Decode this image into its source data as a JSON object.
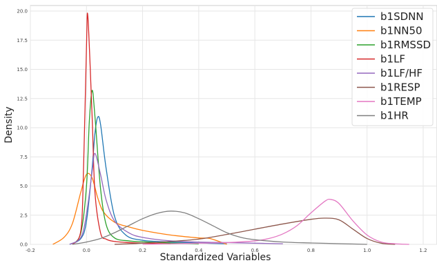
{
  "chart_data": {
    "type": "line",
    "subtype": "kde",
    "title": "",
    "xlabel": "Standardized Variables",
    "ylabel": "Density",
    "xlim": [
      -0.2,
      1.2
    ],
    "ylim": [
      0,
      20
    ],
    "x_ticks": [
      -0.2,
      0.0,
      0.2,
      0.4,
      0.6,
      0.8,
      1.0,
      1.2
    ],
    "x_tick_labels": [
      "-0.2",
      "0.0",
      "0.2",
      "0.4",
      "0.6",
      "0.8",
      "1.0",
      "1.2"
    ],
    "y_ticks": [
      0,
      2.5,
      5,
      7.5,
      10,
      12.5,
      15,
      17.5,
      20
    ],
    "y_tick_labels": [
      "0.0",
      "2.5",
      "5.0",
      "7.5",
      "10.0",
      "12.5",
      "15.0",
      "17.5",
      "20.0"
    ],
    "grid": true,
    "legend_position": "top-right",
    "series": [
      {
        "name": "b1SDNN",
        "color": "#1f77b4",
        "x": [
          -0.06,
          -0.02,
          0.0,
          0.02,
          0.03,
          0.04,
          0.05,
          0.07,
          0.1,
          0.14,
          0.2,
          0.3,
          0.4,
          0.5
        ],
        "y": [
          0.0,
          0.5,
          2.0,
          6.5,
          9.5,
          10.9,
          10.3,
          6.5,
          2.4,
          0.8,
          0.35,
          0.2,
          0.12,
          0.05
        ]
      },
      {
        "name": "b1NN50",
        "color": "#ff7f0e",
        "x": [
          -0.12,
          -0.08,
          -0.05,
          -0.02,
          0.0,
          0.02,
          0.04,
          0.06,
          0.1,
          0.15,
          0.2,
          0.3,
          0.4,
          0.44,
          0.5
        ],
        "y": [
          0.0,
          0.6,
          1.8,
          4.5,
          6.0,
          5.7,
          4.0,
          2.8,
          1.9,
          1.5,
          1.2,
          0.8,
          0.55,
          0.5,
          0.0
        ]
      },
      {
        "name": "b1RMSSD",
        "color": "#2ca02c",
        "x": [
          -0.05,
          -0.02,
          0.0,
          0.01,
          0.02,
          0.03,
          0.05,
          0.07,
          0.1,
          0.15,
          0.2,
          0.3,
          0.4
        ],
        "y": [
          0.0,
          1.0,
          5.0,
          10.5,
          13.2,
          11.0,
          4.8,
          1.7,
          0.55,
          0.3,
          0.22,
          0.12,
          0.05
        ]
      },
      {
        "name": "b1LF",
        "color": "#d62728",
        "x": [
          -0.05,
          -0.02,
          -0.01,
          0.0,
          0.005,
          0.02,
          0.03,
          0.05,
          0.07,
          0.1,
          0.15,
          0.2,
          0.3
        ],
        "y": [
          0.0,
          1.2,
          7.0,
          17.0,
          19.5,
          11.0,
          4.5,
          1.0,
          0.45,
          0.25,
          0.15,
          0.1,
          0.05
        ]
      },
      {
        "name": "b1LF/HF",
        "color": "#9467bd",
        "x": [
          -0.06,
          -0.02,
          0.0,
          0.02,
          0.03,
          0.05,
          0.07,
          0.1,
          0.15,
          0.2,
          0.3,
          0.4,
          0.5,
          0.6,
          0.7
        ],
        "y": [
          0.0,
          0.6,
          2.6,
          6.2,
          7.8,
          6.0,
          3.8,
          2.0,
          1.0,
          0.6,
          0.3,
          0.2,
          0.15,
          0.1,
          0.05
        ]
      },
      {
        "name": "b1RESP",
        "color": "#8c564b",
        "x": [
          0.1,
          0.2,
          0.3,
          0.4,
          0.5,
          0.6,
          0.7,
          0.8,
          0.85,
          0.9,
          0.95,
          1.0,
          1.05,
          1.1
        ],
        "y": [
          0.0,
          0.1,
          0.25,
          0.45,
          0.85,
          1.3,
          1.75,
          2.15,
          2.25,
          2.1,
          1.3,
          0.5,
          0.1,
          0.0
        ]
      },
      {
        "name": "b1TEMP",
        "color": "#e377c2",
        "x": [
          0.2,
          0.4,
          0.5,
          0.6,
          0.65,
          0.7,
          0.75,
          0.8,
          0.85,
          0.87,
          0.9,
          0.95,
          1.0,
          1.05,
          1.1,
          1.15
        ],
        "y": [
          0.0,
          0.1,
          0.15,
          0.3,
          0.5,
          0.9,
          1.6,
          2.7,
          3.7,
          3.85,
          3.5,
          2.0,
          0.8,
          0.2,
          0.05,
          0.0
        ]
      },
      {
        "name": "b1HR",
        "color": "#7f7f7f",
        "x": [
          -0.05,
          0.0,
          0.05,
          0.1,
          0.15,
          0.2,
          0.25,
          0.3,
          0.35,
          0.4,
          0.45,
          0.5,
          0.55,
          0.6,
          0.7,
          0.8,
          0.9,
          1.0
        ],
        "y": [
          0.0,
          0.2,
          0.5,
          1.0,
          1.6,
          2.2,
          2.65,
          2.85,
          2.7,
          2.2,
          1.6,
          1.0,
          0.6,
          0.4,
          0.2,
          0.12,
          0.06,
          0.0
        ]
      }
    ]
  }
}
